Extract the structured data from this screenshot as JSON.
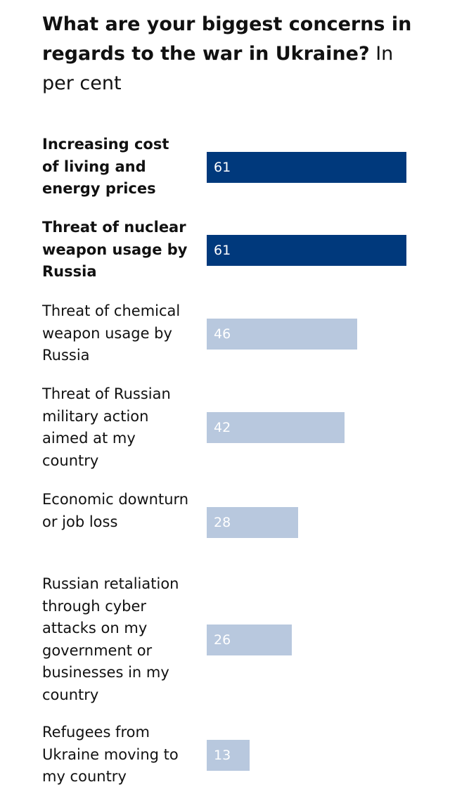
{
  "chart_data": {
    "type": "bar",
    "orientation": "horizontal",
    "title": "What are your biggest concerns in regards to the war in Ukraine?",
    "subtitle": "In per cent",
    "categories": [
      "Increasing cost of living and energy prices",
      "Threat of nuclear weapon usage by Russia",
      "Threat of chemical weapon usage by Russia",
      "Threat of Russian military action aimed at my country",
      "Economic downturn or job loss",
      "Russian retaliation through cyber attacks on my government or businesses in my country",
      "Refugees from Ukraine moving to my country"
    ],
    "values": [
      61,
      61,
      46,
      42,
      28,
      26,
      13
    ],
    "value_labels": [
      "61",
      "61",
      "46",
      "42",
      "28",
      "26",
      "13"
    ],
    "highlighted": [
      true,
      true,
      false,
      false,
      false,
      false,
      false
    ],
    "xlim": [
      0,
      66
    ],
    "colors": {
      "highlight": "#00397c",
      "default": "#b8c8de"
    },
    "grid": false,
    "legend": "none"
  }
}
